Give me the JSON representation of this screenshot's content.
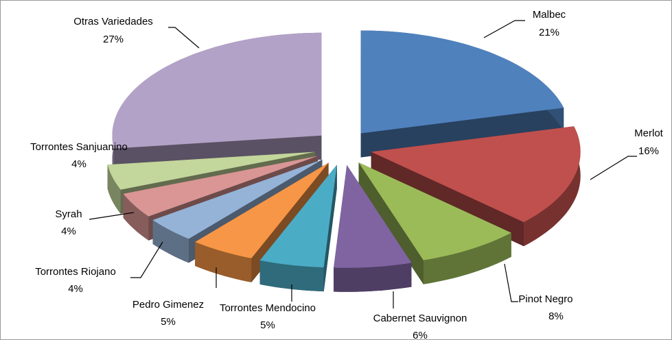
{
  "chart_data": {
    "type": "pie",
    "categories": [
      "Malbec",
      "Merlot",
      "Pinot Negro",
      "Cabernet Sauvignon",
      "Torrontes Mendocino",
      "Pedro Gimenez",
      "Torrontes Riojano",
      "Syrah",
      "Torrontes Sanjuanino",
      "Otras Variedades"
    ],
    "values": [
      21,
      16,
      8,
      6,
      5,
      5,
      4,
      4,
      4,
      27
    ],
    "value_labels": [
      "21%",
      "16%",
      "8%",
      "6%",
      "5%",
      "5%",
      "4%",
      "4%",
      "4%",
      "27%"
    ],
    "colors": [
      "#4f81bd",
      "#c0504d",
      "#9bbb59",
      "#8064a2",
      "#4bacc6",
      "#f79646",
      "#95b3d7",
      "#d99694",
      "#c3d69b",
      "#b3a2c7"
    ]
  }
}
